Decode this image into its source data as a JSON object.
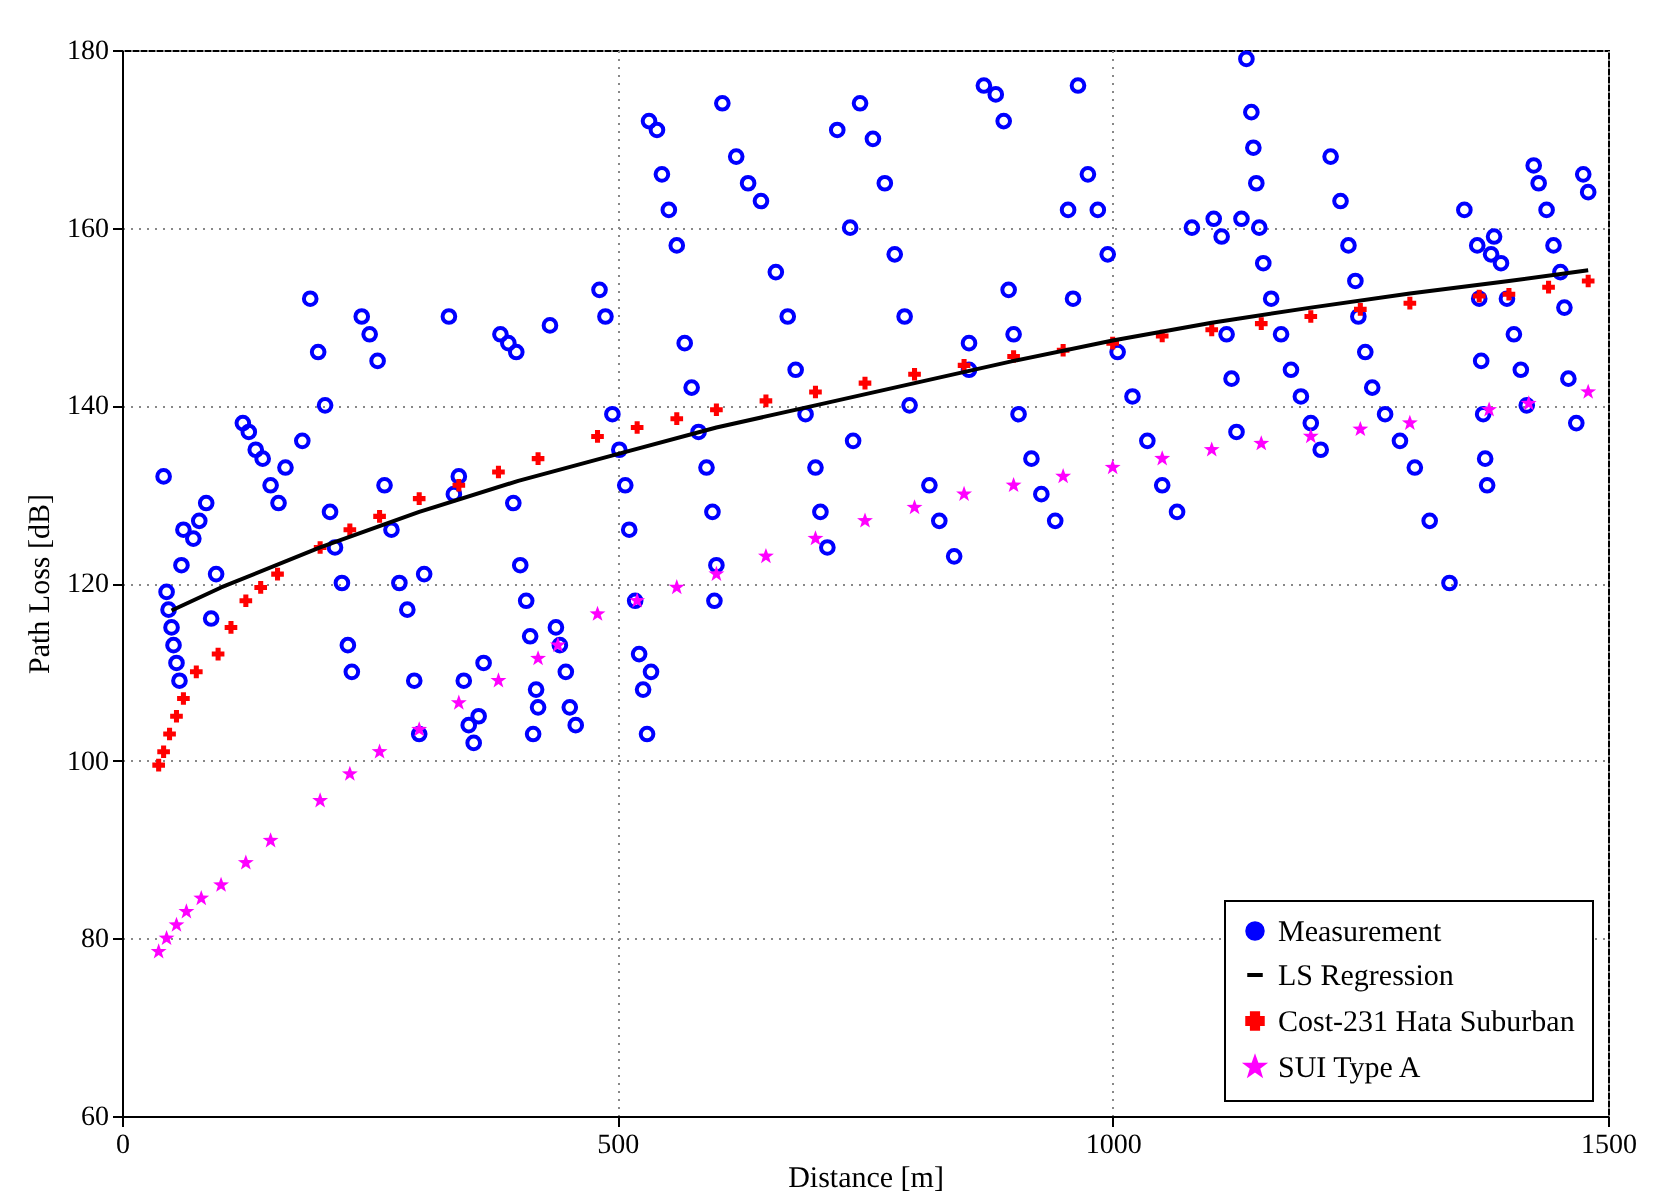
{
  "chart_data": {
    "type": "scatter",
    "xlabel": "Distance [m]",
    "ylabel": "Path Loss [dB]",
    "xlim": [
      0,
      1500
    ],
    "xticks": [
      0,
      500,
      1000,
      1500
    ],
    "ylim": [
      60,
      180
    ],
    "yticks": [
      60,
      80,
      100,
      120,
      140,
      160,
      180
    ],
    "grid": true,
    "legend": "bottom right",
    "series": [
      {
        "name": "Measurement",
        "marker": "circle",
        "color": "#0000ff",
        "x": [
          42,
          45,
          47,
          50,
          52,
          55,
          58,
          60,
          62,
          72,
          78,
          85,
          90,
          95,
          122,
          128,
          135,
          142,
          150,
          158,
          165,
          182,
          190,
          198,
          205,
          210,
          215,
          222,
          228,
          232,
          242,
          250,
          258,
          265,
          272,
          280,
          288,
          295,
          300,
          305,
          330,
          335,
          340,
          345,
          350,
          355,
          360,
          365,
          382,
          390,
          398,
          402,
          408,
          412,
          418,
          420,
          415,
          395,
          432,
          438,
          442,
          448,
          452,
          458,
          482,
          488,
          495,
          502,
          508,
          512,
          518,
          522,
          526,
          530,
          534,
          532,
          540,
          545,
          552,
          560,
          568,
          575,
          582,
          590,
          596,
          600,
          598,
          606,
          620,
          632,
          645,
          660,
          672,
          680,
          690,
          700,
          705,
          712,
          722,
          735,
          745,
          758,
          770,
          780,
          790,
          795,
          738,
          815,
          825,
          840,
          855,
          870,
          882,
          890,
          895,
          900,
          855,
          905,
          918,
          928,
          942,
          955,
          965,
          975,
          985,
          995,
          960,
          1005,
          1020,
          1035,
          1050,
          1065,
          1080,
          1102,
          1110,
          1115,
          1120,
          1125,
          1130,
          1135,
          1140,
          1142,
          1145,
          1148,
          1152,
          1160,
          1170,
          1180,
          1190,
          1200,
          1210,
          1220,
          1230,
          1238,
          1245,
          1248,
          1255,
          1262,
          1275,
          1290,
          1305,
          1320,
          1340,
          1355,
          1368,
          1370,
          1372,
          1374,
          1376,
          1378,
          1382,
          1425,
          1430,
          1438,
          1445,
          1452,
          1460,
          1468,
          1475,
          1480,
          1385,
          1392,
          1398,
          1405,
          1412,
          1418,
          1456
        ],
        "values": [
          132,
          119,
          117,
          115,
          113,
          111,
          109,
          122,
          126,
          125,
          127,
          129,
          116,
          121,
          138,
          137,
          135,
          134,
          131,
          129,
          133,
          136,
          152,
          146,
          140,
          128,
          124,
          120,
          113,
          110,
          150,
          148,
          145,
          131,
          126,
          120,
          117,
          109,
          103,
          121,
          150,
          130,
          132,
          109,
          104,
          102,
          105,
          111,
          148,
          147,
          146,
          122,
          118,
          114,
          108,
          106,
          103,
          129,
          149,
          115,
          113,
          110,
          106,
          104,
          153,
          150,
          139,
          135,
          131,
          126,
          118,
          112,
          108,
          103,
          110,
          172,
          171,
          166,
          162,
          158,
          147,
          142,
          137,
          133,
          128,
          122,
          118,
          174,
          168,
          165,
          163,
          155,
          150,
          144,
          139,
          133,
          128,
          124,
          171,
          160,
          174,
          170,
          165,
          157,
          150,
          140,
          136,
          131,
          127,
          123,
          147,
          176,
          175,
          172,
          153,
          148,
          144,
          139,
          134,
          130,
          127,
          162,
          176,
          166,
          162,
          157,
          152,
          146,
          141,
          136,
          131,
          128,
          160,
          161,
          159,
          148,
          143,
          137,
          161,
          179,
          173,
          169,
          165,
          160,
          156,
          152,
          148,
          144,
          141,
          138,
          135,
          168,
          163,
          158,
          154,
          150,
          146,
          142,
          139,
          136,
          133,
          127,
          120,
          162,
          158,
          152,
          145,
          139,
          134,
          131,
          157,
          167,
          165,
          162,
          158,
          155,
          143,
          138,
          166,
          164,
          159,
          156,
          152,
          148,
          144,
          140,
          151
        ]
      },
      {
        "name": "LS Regression",
        "type": "line",
        "color": "#000000",
        "x": [
          50,
          100,
          200,
          300,
          400,
          500,
          600,
          700,
          800,
          900,
          1000,
          1100,
          1200,
          1300,
          1400,
          1480
        ],
        "values": [
          116.9,
          119.5,
          124,
          128,
          131.5,
          134.5,
          137.5,
          140,
          142.5,
          145,
          147.3,
          149.3,
          151,
          152.6,
          154,
          155.2
        ]
      },
      {
        "name": "Cost-231 Hata Suburban",
        "marker": "cross",
        "color": "#ff0000",
        "x": [
          37,
          42,
          48,
          55,
          62,
          75,
          97,
          110,
          125,
          140,
          157,
          200,
          230,
          260,
          300,
          340,
          380,
          420,
          480,
          520,
          560,
          600,
          650,
          700,
          750,
          800,
          850,
          900,
          950,
          1000,
          1050,
          1100,
          1150,
          1200,
          1250,
          1300,
          1370,
          1400,
          1440,
          1480
        ],
        "values": [
          99.5,
          101,
          103,
          105,
          107,
          110,
          112,
          115,
          118,
          119.5,
          121,
          124,
          126,
          127.5,
          129.5,
          131,
          132.5,
          134,
          136.5,
          137.5,
          138.5,
          139.5,
          140.5,
          141.5,
          142.5,
          143.5,
          144.5,
          145.5,
          146.2,
          147,
          147.8,
          148.5,
          149.2,
          150,
          150.8,
          151.5,
          152.3,
          152.5,
          153.3,
          154
        ]
      },
      {
        "name": "SUI Type A",
        "marker": "star",
        "color": "#ff00ff",
        "x": [
          37,
          45,
          55,
          65,
          80,
          100,
          125,
          150,
          200,
          230,
          260,
          300,
          340,
          380,
          420,
          440,
          480,
          520,
          560,
          600,
          650,
          700,
          750,
          800,
          850,
          900,
          950,
          1000,
          1050,
          1100,
          1150,
          1200,
          1250,
          1300,
          1380,
          1420,
          1480
        ],
        "values": [
          78.5,
          80,
          81.5,
          83,
          84.5,
          86,
          88.5,
          91,
          95.5,
          98.5,
          101,
          103.5,
          106.5,
          109,
          111.5,
          113,
          116.5,
          118,
          119.5,
          121,
          123,
          125,
          127,
          128.5,
          130,
          131,
          132,
          133,
          134,
          135,
          135.7,
          136.5,
          137.3,
          138,
          139.5,
          140.2,
          141.5
        ]
      }
    ]
  }
}
